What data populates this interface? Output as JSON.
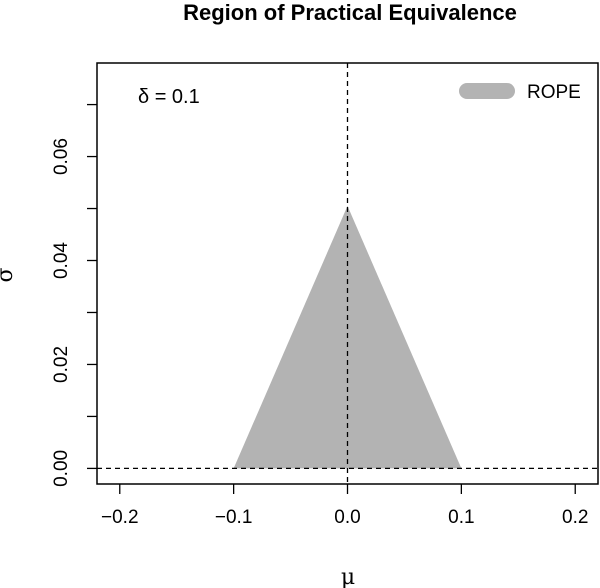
{
  "chart_data": {
    "type": "area",
    "title": "Region of Practical Equivalence",
    "xlabel": "μ",
    "ylabel": "σ",
    "xlim": [
      -0.22,
      0.22
    ],
    "ylim": [
      -0.003,
      0.078
    ],
    "x_ticks": [
      -0.2,
      -0.1,
      0.0,
      0.1,
      0.2
    ],
    "x_tick_labels": [
      "−0.2",
      "−0.1",
      "0.0",
      "0.1",
      "0.2"
    ],
    "y_ticks": [
      0.0,
      0.02,
      0.04,
      0.06
    ],
    "y_tick_labels": [
      "0.00",
      "0.02",
      "0.04",
      "0.06"
    ],
    "y_minor_ticks": [
      0.01,
      0.03,
      0.05,
      0.07
    ],
    "grid": false,
    "annotation": "δ = 0.1",
    "legend": {
      "position": "top-right",
      "entries": [
        "ROPE"
      ]
    },
    "series": [
      {
        "name": "ROPE",
        "type": "polygon",
        "color": "#b3b3b3",
        "points": [
          [
            -0.1,
            0.0
          ],
          [
            0.0,
            0.0505
          ],
          [
            0.1,
            0.0
          ]
        ]
      }
    ],
    "reference_lines": [
      {
        "orientation": "vertical",
        "value": 0.0,
        "style": "dashed"
      },
      {
        "orientation": "horizontal",
        "value": 0.0,
        "style": "dashed"
      }
    ]
  }
}
